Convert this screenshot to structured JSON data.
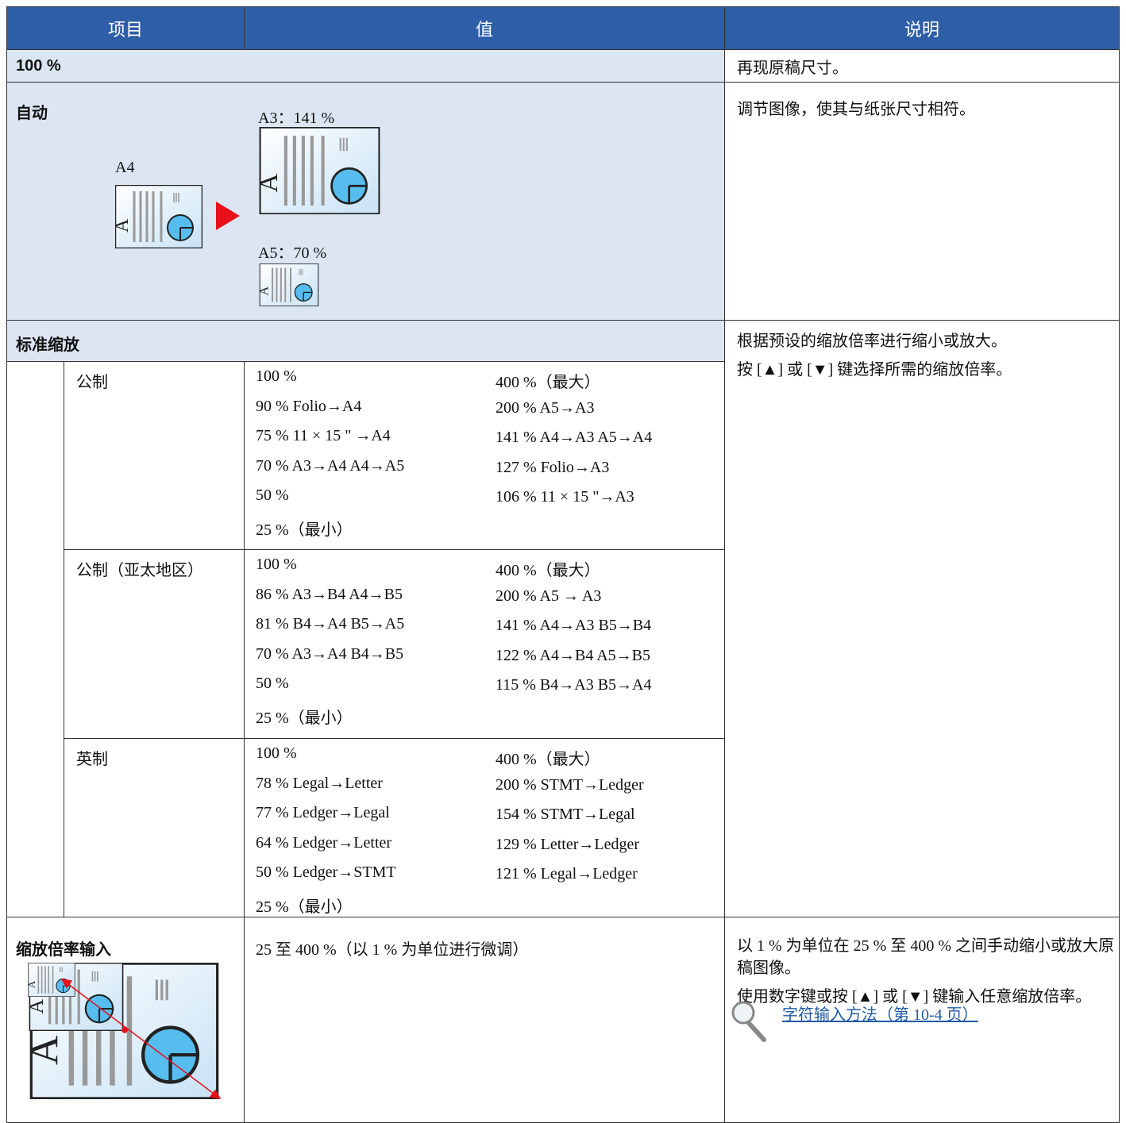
{
  "table": {
    "header": [
      "项目",
      "值",
      "说明"
    ],
    "rows": [
      {
        "item": "100 %",
        "description": [
          "再现原稿尺寸。"
        ]
      },
      {
        "item": "自动",
        "figure_labels": [
          "A4",
          "A3：141 %",
          "A5：70 %"
        ],
        "description": [
          "调节图像，使其与纸张尺寸相符。"
        ]
      },
      {
        "item": "标准缩放",
        "description": [
          "根据预设的缩放倍率进行缩小或放大。",
          "按 [▲] 或 [▼] 键选择所需的缩放倍率。"
        ],
        "subrows": [
          {
            "item": "公制",
            "left": [
              "100 %",
              "90 % Folio→A4",
              "75 % 11 × 15 \" →A4",
              "70 % A3→A4  A4→A5",
              "50 %",
              "25 %（最小）"
            ],
            "right": [
              "400 %（最大）",
              "200 % A5→A3",
              "141 % A4→A3  A5→A4",
              "127 % Folio→A3",
              "106 % 11 × 15 \"→A3"
            ]
          },
          {
            "item": "公制（亚太地区）",
            "left": [
              "100 %",
              "86 % A3→B4  A4→B5",
              "81 % B4→A4  B5→A5",
              "70 % A3→A4  B4→B5",
              "50 %",
              "25 %（最小）"
            ],
            "right": [
              "400 %（最大）",
              "200 % A5 → A3",
              "141 % A4→A3  B5→B4",
              "122 % A4→B4  A5→B5",
              "115 % B4→A3  B5→A4"
            ]
          },
          {
            "item": "英制",
            "left": [
              "100 %",
              "78 % Legal→Letter",
              "77 % Ledger→Legal",
              "64 % Ledger→Letter",
              "50 % Ledger→STMT",
              "25 %（最小）"
            ],
            "right": [
              "400 %（最大）",
              "200 % STMT→Ledger",
              "154 % STMT→Legal",
              "129 % Letter→Ledger",
              "121 % Legal→Ledger"
            ]
          }
        ]
      },
      {
        "item": "缩放倍率输入",
        "value": "25 至 400 %（以 1 % 为单位进行微调）",
        "description": [
          "以 1 % 为单位在 25 % 至 400 % 之间手动缩小或放大原稿图像。",
          "使用数字键或按 [▲] 或 [▼] 键输入任意缩放倍率。"
        ],
        "link": "字符输入方法（第 10-4 页）"
      }
    ]
  }
}
